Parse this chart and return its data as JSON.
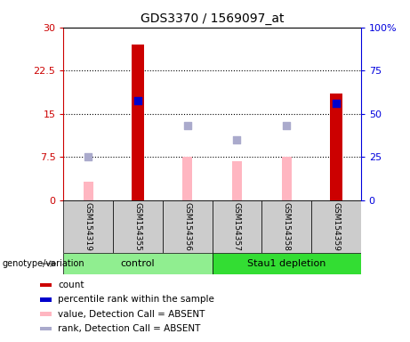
{
  "title": "GDS3370 / 1569097_at",
  "samples": [
    "GSM154319",
    "GSM154355",
    "GSM154356",
    "GSM154357",
    "GSM154358",
    "GSM154359"
  ],
  "groups": [
    {
      "name": "control",
      "indices": [
        0,
        1,
        2
      ],
      "color": "#90EE90"
    },
    {
      "name": "Stau1 depletion",
      "indices": [
        3,
        4,
        5
      ],
      "color": "#33DD33"
    }
  ],
  "count_values": [
    null,
    27.0,
    null,
    null,
    null,
    18.5
  ],
  "count_color": "#CC0000",
  "percentile_values_left": [
    null,
    17.2,
    null,
    null,
    null,
    16.8
  ],
  "percentile_color": "#0000CC",
  "absent_value_bars": [
    3.2,
    null,
    7.5,
    6.8,
    7.5,
    null
  ],
  "absent_value_color": "#FFB6C1",
  "absent_rank_dots_left": [
    7.5,
    null,
    13.0,
    10.5,
    13.0,
    null
  ],
  "absent_rank_color": "#AAAACC",
  "ylim_left": [
    0,
    30
  ],
  "ylim_right": [
    0,
    100
  ],
  "yticks_left": [
    0,
    7.5,
    15,
    22.5,
    30
  ],
  "ytick_labels_left": [
    "0",
    "7.5",
    "15",
    "22.5",
    "30"
  ],
  "yticks_right": [
    0,
    25,
    50,
    75,
    100
  ],
  "ytick_labels_right": [
    "0",
    "25",
    "50",
    "75",
    "100%"
  ],
  "hlines": [
    7.5,
    15,
    22.5
  ],
  "legend_items": [
    {
      "label": "count",
      "color": "#CC0000"
    },
    {
      "label": "percentile rank within the sample",
      "color": "#0000CC"
    },
    {
      "label": "value, Detection Call = ABSENT",
      "color": "#FFB6C1"
    },
    {
      "label": "rank, Detection Call = ABSENT",
      "color": "#AAAACC"
    }
  ],
  "genotype_label": "genotype/variation",
  "sample_box_color": "#CCCCCC",
  "count_bar_width": 0.25,
  "absent_bar_width": 0.2,
  "dot_size": 30,
  "plot_bg": "#FFFFFF",
  "left_axis_color": "#CC0000",
  "right_axis_color": "#0000DD"
}
